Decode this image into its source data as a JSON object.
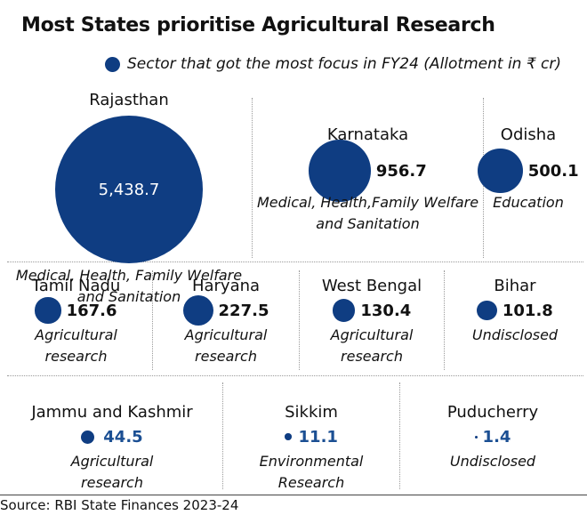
{
  "title": "Most States prioritise Agricultural Research",
  "legend": "Sector that got the most focus in FY24  (Allotment in ₹ cr)",
  "source": "Source: RBI State Finances 2023-24",
  "colors": {
    "bubble": "#0f3d82",
    "value_blue": "#1b4f93"
  },
  "chart_data": {
    "type": "bubble",
    "unit": "₹ cr",
    "items": [
      {
        "state": "Rajasthan",
        "value": 5438.7,
        "label": "5,438.7",
        "sector": [
          "Medical, Health, Family Welfare",
          "and Sanitation"
        ]
      },
      {
        "state": "Karnataka",
        "value": 956.7,
        "label": "956.7",
        "sector": [
          "Medical, Health,Family Welfare",
          "and Sanitation"
        ]
      },
      {
        "state": "Odisha",
        "value": 500.1,
        "label": "500.1",
        "sector": [
          "Education"
        ]
      },
      {
        "state": "Tamil Nadu",
        "value": 167.6,
        "label": "167.6",
        "sector": [
          "Agricultural",
          "research"
        ]
      },
      {
        "state": "Haryana",
        "value": 227.5,
        "label": "227.5",
        "sector": [
          "Agricultural",
          "research"
        ]
      },
      {
        "state": "West Bengal",
        "value": 130.4,
        "label": "130.4",
        "sector": [
          "Agricultural",
          "research"
        ]
      },
      {
        "state": "Bihar",
        "value": 101.8,
        "label": "101.8",
        "sector": [
          "Undisclosed"
        ]
      },
      {
        "state": "Jammu and Kashmir",
        "value": 44.5,
        "label": "44.5",
        "sector": [
          "Agricultural",
          "research"
        ]
      },
      {
        "state": "Sikkim",
        "value": 11.1,
        "label": "11.1",
        "sector": [
          "Environmental",
          "Research"
        ]
      },
      {
        "state": "Puducherry",
        "value": 1.4,
        "label": "1.4",
        "sector": [
          "Undisclosed"
        ]
      }
    ]
  }
}
